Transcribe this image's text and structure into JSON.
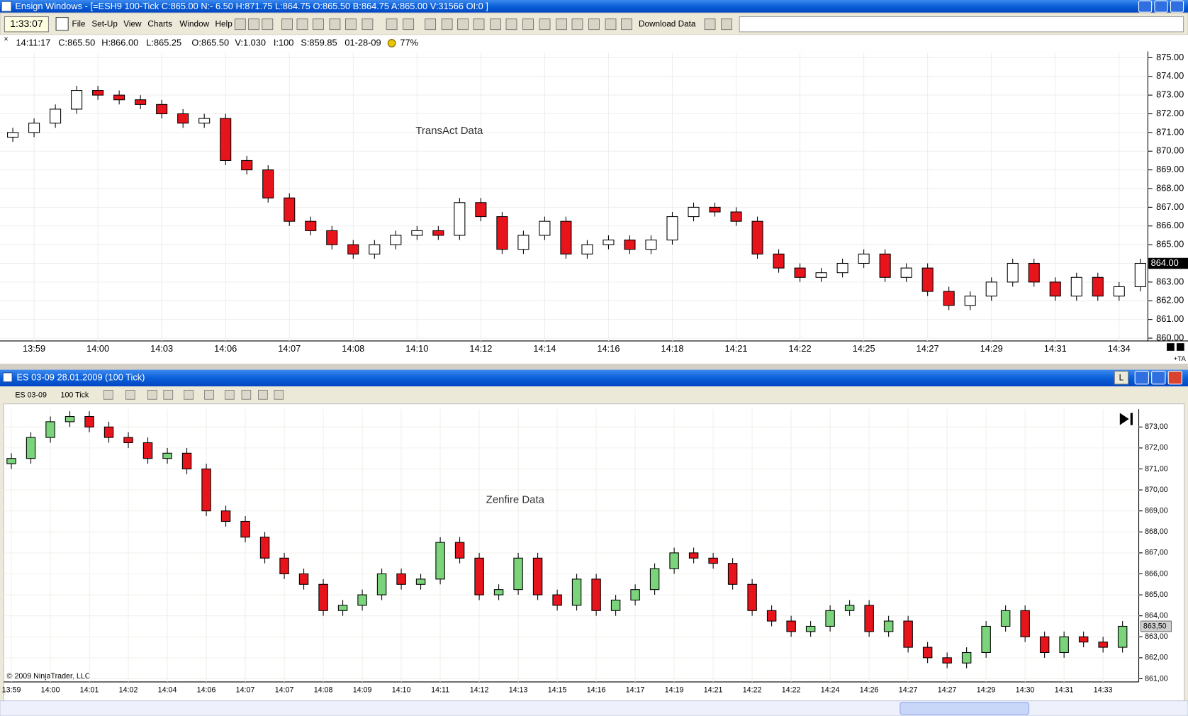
{
  "window_title": "Ensign Windows - [=ESH9 100-Tick C:865.00 N:- 6.50 H:871.75 L:864.75 O:865.50 B:864.75 A:865.00 V:31566 OI:0 ]",
  "toolbar": {
    "clock": "1:33:07",
    "menu": [
      "File",
      "Set-Up",
      "View",
      "Charts",
      "Window",
      "Help"
    ],
    "download": "Download Data"
  },
  "status_bar": [
    "14:11:17",
    "C:865.50",
    "H:866.00",
    "L:865.25",
    "O:865.50",
    "V:1.030",
    "I:100",
    "S:859.85",
    "01-28-09",
    "77%"
  ],
  "top_axis_note": "+TA",
  "panel2": {
    "title": "ES 03-09  28.01.2009 (100 Tick)",
    "instrument": "ES 03-09",
    "period": "100 Tick",
    "l_button": "L",
    "copyright": "© 2009 NinjaTrader, LLC"
  },
  "chart_data": [
    {
      "type": "candlestick",
      "annotation": "TransAct Data",
      "up_color": "#ffffff",
      "down_color": "#e8141c",
      "grid": true,
      "categories": [
        null,
        "13:59",
        null,
        null,
        "14:00",
        null,
        null,
        "14:03",
        null,
        null,
        "14:06",
        null,
        null,
        "14:07",
        null,
        null,
        "14:08",
        null,
        null,
        "14:10",
        null,
        null,
        "14:12",
        null,
        null,
        "14:14",
        null,
        null,
        "14:16",
        null,
        null,
        "14:18",
        null,
        null,
        "14:21",
        null,
        null,
        "14:22",
        null,
        null,
        "14:25",
        null,
        null,
        "14:27",
        null,
        null,
        "14:29",
        null,
        null,
        "14:31",
        null,
        null,
        "14:34",
        null
      ],
      "open": [
        870.75,
        871,
        871.5,
        872.25,
        873.25,
        873,
        872.75,
        872.5,
        872,
        871.5,
        871.75,
        869.5,
        869,
        867.5,
        866.25,
        865.75,
        865,
        864.5,
        865,
        865.5,
        865.75,
        865.5,
        867.25,
        866.5,
        864.75,
        865.5,
        866.25,
        864.5,
        865,
        865.25,
        864.75,
        865.25,
        866.5,
        867,
        866.75,
        866.25,
        864.5,
        863.75,
        863.25,
        863.5,
        864,
        864.5,
        863.25,
        863.75,
        862.5,
        861.75,
        862.25,
        863,
        864,
        863,
        862.25,
        863.25,
        862.25,
        862.75
      ],
      "high": [
        871.25,
        871.75,
        872.5,
        873.5,
        873.5,
        873.25,
        873,
        872.75,
        872.25,
        872,
        872,
        869.75,
        869.25,
        867.75,
        866.5,
        866,
        865.25,
        865.25,
        865.75,
        866,
        866,
        867.5,
        867.5,
        866.75,
        865.75,
        866.5,
        866.5,
        865.25,
        865.5,
        865.5,
        865.5,
        866.75,
        867.25,
        867.25,
        867,
        866.5,
        864.75,
        864,
        863.75,
        864.25,
        864.75,
        864.75,
        864,
        864,
        862.75,
        862.5,
        863.25,
        864.25,
        864.25,
        863.25,
        863.5,
        863.5,
        863,
        864.25
      ],
      "low": [
        870.5,
        870.75,
        871.25,
        872,
        872.75,
        872.5,
        872.25,
        871.75,
        871.25,
        871.25,
        869.25,
        868.75,
        867.25,
        866,
        865.5,
        864.75,
        864.25,
        864.25,
        864.75,
        865.25,
        865.25,
        865.25,
        866.25,
        864.5,
        864.5,
        865.25,
        864.25,
        864.25,
        864.75,
        864.5,
        864.5,
        865,
        866.25,
        866.5,
        866,
        864.25,
        863.5,
        863,
        863,
        863.25,
        863.75,
        863,
        863,
        862.25,
        861.5,
        861.5,
        862,
        862.75,
        862.75,
        862,
        862,
        862,
        862,
        862.5
      ],
      "close": [
        871,
        871.5,
        872.25,
        873.25,
        873,
        872.75,
        872.5,
        872,
        871.5,
        871.75,
        869.5,
        869,
        867.5,
        866.25,
        865.75,
        865,
        864.5,
        865,
        865.5,
        865.75,
        865.5,
        867.25,
        866.5,
        864.75,
        865.5,
        866.25,
        864.5,
        865,
        865.25,
        864.75,
        865.25,
        866.5,
        867,
        866.75,
        866.25,
        864.5,
        863.75,
        863.25,
        863.5,
        864,
        864.5,
        863.25,
        863.75,
        862.5,
        861.75,
        862.25,
        863,
        864,
        863,
        862.25,
        863.25,
        862.25,
        862.75,
        864
      ],
      "ylim": [
        859.85,
        875.25
      ],
      "yticks": [
        {
          "value": 860,
          "label": "860.00"
        },
        {
          "value": 861,
          "label": "861.00"
        },
        {
          "value": 862,
          "label": "862.00"
        },
        {
          "value": 863,
          "label": "863.00"
        },
        {
          "value": 864,
          "label": "864.00"
        },
        {
          "value": 865,
          "label": "865.00"
        },
        {
          "value": 866,
          "label": "866.00"
        },
        {
          "value": 867,
          "label": "867.00"
        },
        {
          "value": 868,
          "label": "868.00"
        },
        {
          "value": 869,
          "label": "869.00"
        },
        {
          "value": 870,
          "label": "870.00"
        },
        {
          "value": 871,
          "label": "871.00"
        },
        {
          "value": 872,
          "label": "872.00"
        },
        {
          "value": 873,
          "label": "873.00"
        },
        {
          "value": 874,
          "label": "874.00"
        },
        {
          "value": 875,
          "label": "875.00"
        }
      ],
      "last_price": {
        "value": 864,
        "label": "864.00"
      }
    },
    {
      "type": "candlestick",
      "annotation": "Zenfire Data",
      "up_color": "#7bd37b",
      "down_color": "#e8141c",
      "grid": true,
      "categories": [
        "13:59",
        null,
        "14:00",
        null,
        "14:01",
        null,
        "14:02",
        null,
        "14:04",
        null,
        "14:06",
        null,
        "14:07",
        null,
        "14:07",
        null,
        "14:08",
        null,
        "14:09",
        null,
        "14:10",
        null,
        "14:11",
        null,
        "14:12",
        null,
        "14:13",
        null,
        "14:15",
        null,
        "14:16",
        null,
        "14:17",
        null,
        "14:19",
        null,
        "14:21",
        null,
        "14:22",
        null,
        "14:22",
        null,
        "14:24",
        null,
        "14:26",
        null,
        "14:27",
        null,
        "14:27",
        null,
        "14:29",
        null,
        "14:30",
        null,
        "14:31",
        null,
        "14:33",
        null
      ],
      "open": [
        871.25,
        871.5,
        872.5,
        873.25,
        873.5,
        873,
        872.5,
        872.25,
        871.5,
        871.75,
        871,
        869,
        868.5,
        867.75,
        866.75,
        866,
        865.5,
        864.25,
        864.5,
        865,
        866,
        865.5,
        865.75,
        867.5,
        866.75,
        865,
        865.25,
        866.75,
        865,
        864.5,
        865.75,
        864.25,
        864.75,
        865.25,
        866.25,
        867,
        866.75,
        866.5,
        865.5,
        864.25,
        863.75,
        863.25,
        863.5,
        864.25,
        864.5,
        863.25,
        863.75,
        862.5,
        862,
        861.75,
        862.25,
        863.5,
        864.25,
        863,
        862.25,
        863,
        862.75,
        862.5
      ],
      "high": [
        871.75,
        872.75,
        873.5,
        873.75,
        873.75,
        873.25,
        872.75,
        872.5,
        872,
        872,
        871.25,
        869.25,
        868.75,
        868,
        867,
        866.25,
        865.75,
        864.75,
        865.25,
        866.25,
        866.25,
        866,
        867.75,
        867.75,
        867,
        865.5,
        867,
        867,
        865.25,
        866,
        866,
        865,
        865.5,
        866.5,
        867.25,
        867.25,
        867,
        866.75,
        865.75,
        864.5,
        864,
        863.75,
        864.5,
        864.75,
        864.75,
        864,
        864,
        862.75,
        862.25,
        862.5,
        863.75,
        864.5,
        864.5,
        863.25,
        863.25,
        863.25,
        863,
        863.75
      ],
      "low": [
        871,
        871.25,
        872.25,
        873,
        872.75,
        872.25,
        872,
        871.25,
        871.25,
        870.75,
        868.75,
        868.25,
        867.5,
        866.5,
        865.75,
        865.25,
        864,
        864,
        864.25,
        864.75,
        865.25,
        865.25,
        865.5,
        866.5,
        864.75,
        864.75,
        865,
        864.75,
        864.25,
        864.25,
        864,
        864,
        864.5,
        865,
        866,
        866.5,
        866.25,
        865.25,
        864,
        863.5,
        863,
        863,
        863.25,
        864,
        863,
        863,
        862.25,
        861.75,
        861.5,
        861.5,
        862,
        863.25,
        862.75,
        862,
        862,
        862.5,
        862.25,
        862.25
      ],
      "close": [
        871.5,
        872.5,
        873.25,
        873.5,
        873,
        872.5,
        872.25,
        871.5,
        871.75,
        871,
        869,
        868.5,
        867.75,
        866.75,
        866,
        865.5,
        864.25,
        864.5,
        865,
        866,
        865.5,
        865.75,
        867.5,
        866.75,
        865,
        865.25,
        866.75,
        865,
        864.5,
        865.75,
        864.25,
        864.75,
        865.25,
        866.25,
        867,
        866.75,
        866.5,
        865.5,
        864.25,
        863.75,
        863.25,
        863.5,
        864.25,
        864.5,
        863.25,
        863.75,
        862.5,
        862,
        861.75,
        862.25,
        863.5,
        864.25,
        863,
        862.25,
        863,
        862.75,
        862.5,
        863.5
      ],
      "ylim": [
        860.85,
        873.85
      ],
      "yticks": [
        {
          "value": 861,
          "label": "861,00"
        },
        {
          "value": 862,
          "label": "862,00"
        },
        {
          "value": 863,
          "label": "863,00"
        },
        {
          "value": 864,
          "label": "864,00"
        },
        {
          "value": 865,
          "label": "865,00"
        },
        {
          "value": 866,
          "label": "866,00"
        },
        {
          "value": 867,
          "label": "867,00"
        },
        {
          "value": 868,
          "label": "868,00"
        },
        {
          "value": 869,
          "label": "869,00"
        },
        {
          "value": 870,
          "label": "870,00"
        },
        {
          "value": 871,
          "label": "871,00"
        },
        {
          "value": 872,
          "label": "872,00"
        },
        {
          "value": 873,
          "label": "873,00"
        }
      ],
      "last_price": {
        "value": 863.5,
        "label": "863,50"
      }
    }
  ]
}
